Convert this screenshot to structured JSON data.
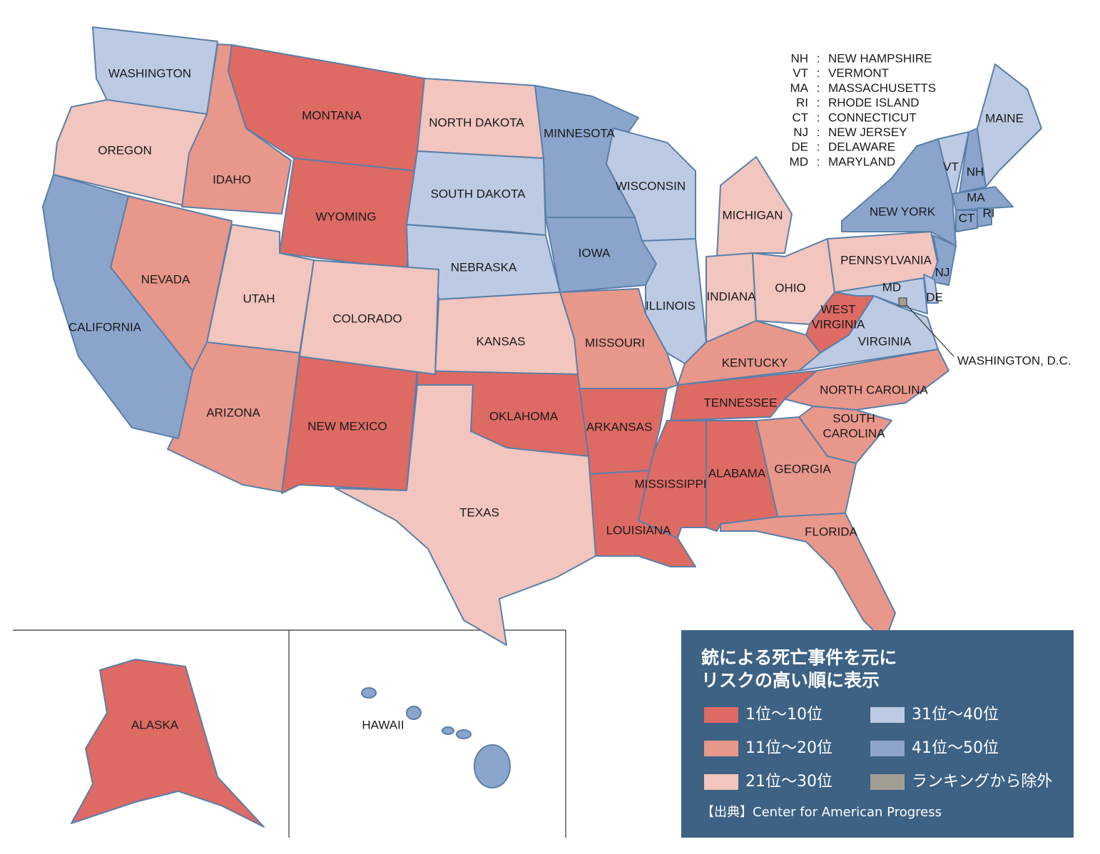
{
  "abbreviations": {
    "separator": ":",
    "items": [
      {
        "code": "NH",
        "name": "NEW HAMPSHIRE"
      },
      {
        "code": "VT",
        "name": "VERMONT"
      },
      {
        "code": "MA",
        "name": "MASSACHUSETTS"
      },
      {
        "code": "RI",
        "name": "RHODE ISLAND"
      },
      {
        "code": "CT",
        "name": "CONNECTICUT"
      },
      {
        "code": "NJ",
        "name": "NEW JERSEY"
      },
      {
        "code": "DE",
        "name": "DELAWARE"
      },
      {
        "code": "MD",
        "name": "MARYLAND"
      }
    ]
  },
  "legend": {
    "title": [
      "銃による死亡事件を元に",
      "リスクの高い順に表示"
    ],
    "items": [
      {
        "label": "1位～10位",
        "color": "#de6a64"
      },
      {
        "label": "11位～20位",
        "color": "#e8978b"
      },
      {
        "label": "21位～30位",
        "color": "#f2c5be"
      },
      {
        "label": "31位～40位",
        "color": "#bdcae3"
      },
      {
        "label": "41位～50位",
        "color": "#8aa4cc"
      },
      {
        "label": "ランキングから除外",
        "color": "#a39e93"
      }
    ],
    "source": "【出典】Center for American Progress"
  },
  "states": [
    {
      "label": "WASHINGTON",
      "group": 3
    },
    {
      "label": "OREGON",
      "group": 2
    },
    {
      "label": "IDAHO",
      "group": 1
    },
    {
      "label": "MONTANA",
      "group": 0
    },
    {
      "label": "WYOMING",
      "group": 0
    },
    {
      "label": "NORTH DAKOTA",
      "group": 2
    },
    {
      "label": "SOUTH DAKOTA",
      "group": 3
    },
    {
      "label": "NEBRASKA",
      "group": 3
    },
    {
      "label": "MINNESOTA",
      "group": 4
    },
    {
      "label": "IOWA",
      "group": 4
    },
    {
      "label": "WISCONSIN",
      "group": 3
    },
    {
      "label": "ILLINOIS",
      "group": 3
    },
    {
      "label": "MICHIGAN",
      "group": 2
    },
    {
      "label": "INDIANA",
      "group": 2
    },
    {
      "label": "OHIO",
      "group": 2
    },
    {
      "label": "PENNSYLVANIA",
      "group": 2
    },
    {
      "label": "NEW YORK",
      "group": 4
    },
    {
      "label": "VT",
      "group": 3
    },
    {
      "label": "NH",
      "group": 4
    },
    {
      "label": "MAINE",
      "group": 3
    },
    {
      "label": "MA",
      "group": 4
    },
    {
      "label": "CT",
      "group": 4
    },
    {
      "label": "RI",
      "group": 4
    },
    {
      "label": "NJ",
      "group": 4
    },
    {
      "label": "DE",
      "group": 3
    },
    {
      "label": "MD",
      "group": 3
    },
    {
      "label": [
        "WEST",
        "VIRGINIA"
      ],
      "group": 0
    },
    {
      "label": "VIRGINIA",
      "group": 3
    },
    {
      "label": "KENTUCKY",
      "group": 1
    },
    {
      "label": "TENNESSEE",
      "group": 0
    },
    {
      "label": "NORTH CAROLINA",
      "group": 1
    },
    {
      "label": [
        "SOUTH",
        "CAROLINA"
      ],
      "group": 1
    },
    {
      "label": "GEORGIA",
      "group": 1
    },
    {
      "label": "FLORIDA",
      "group": 1
    },
    {
      "label": "ALABAMA",
      "group": 0
    },
    {
      "label": "MISSISSIPPI",
      "group": 0
    },
    {
      "label": "LOUISIANA",
      "group": 0
    },
    {
      "label": "ARKANSAS",
      "group": 0
    },
    {
      "label": "MISSOURI",
      "group": 1
    },
    {
      "label": "KANSAS",
      "group": 2
    },
    {
      "label": "OKLAHOMA",
      "group": 0
    },
    {
      "label": "TEXAS",
      "group": 2
    },
    {
      "label": "NEW MEXICO",
      "group": 0
    },
    {
      "label": "COLORADO",
      "group": 2
    },
    {
      "label": "UTAH",
      "group": 2
    },
    {
      "label": "ARIZONA",
      "group": 1
    },
    {
      "label": "NEVADA",
      "group": 1
    },
    {
      "label": "CALIFORNIA",
      "group": 4
    },
    {
      "label": "ALASKA",
      "group": 0
    },
    {
      "label": "HAWAII",
      "group": 4
    }
  ],
  "dc": {
    "label": "WASHINGTON, D.C.",
    "group": 5
  }
}
